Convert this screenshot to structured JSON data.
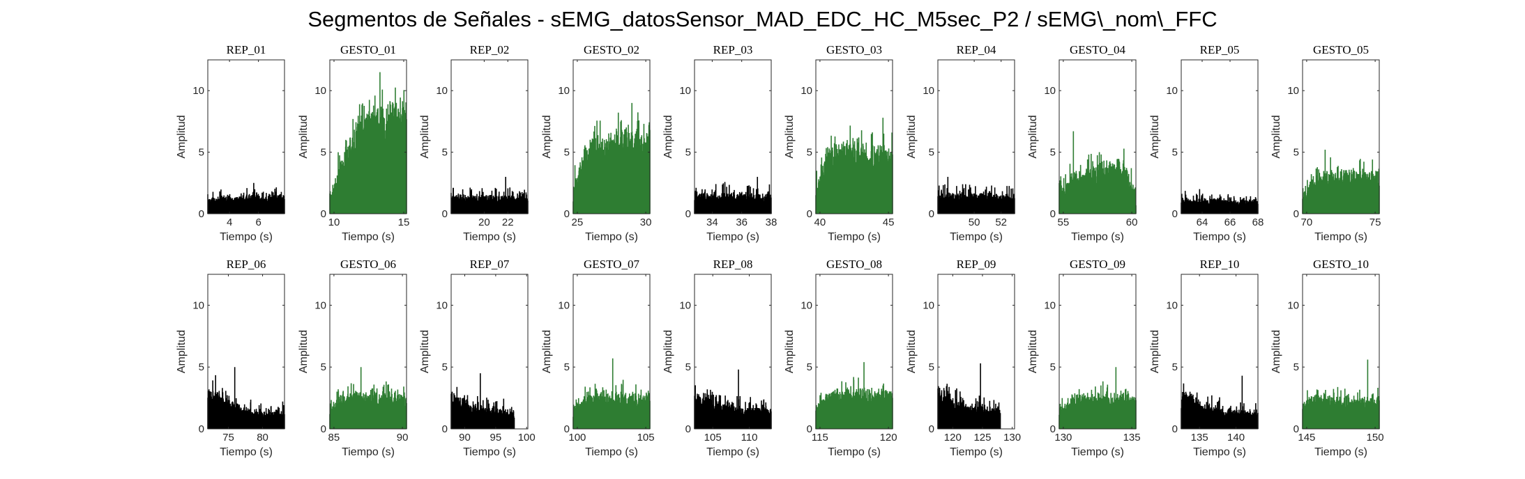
{
  "figure": {
    "title": "Segmentos de Señales - sEMG_datosSensor_MAD_EDC_HC_M5sec_P2 / sEMG\\_nom\\_FFC",
    "colors": {
      "rep": "#000000",
      "gesto": "#2e7d32"
    }
  },
  "chart_data": [
    {
      "type": "area",
      "title": "REP_01",
      "xlabel": "Tiempo (s)",
      "ylabel": "Amplitud",
      "xlim": [
        2.5,
        7.8
      ],
      "ylim": [
        0,
        12.5
      ],
      "xticks": [
        4,
        6
      ],
      "yticks": [
        0,
        5,
        10
      ],
      "x_range": [
        2.5,
        7.8
      ],
      "color": "#000000",
      "level_profile": [
        1.0,
        1.2,
        1.1,
        1.1,
        1.2,
        1.1,
        1.2,
        1.3
      ],
      "noise": 0.6,
      "spike_max": 2.5
    },
    {
      "type": "area",
      "title": "GESTO_01",
      "xlabel": "Tiempo (s)",
      "ylabel": "Amplitud",
      "xlim": [
        9.7,
        15.2
      ],
      "ylim": [
        0,
        12.5
      ],
      "xticks": [
        10,
        15
      ],
      "yticks": [
        0,
        5,
        10
      ],
      "x_range": [
        9.7,
        15.2
      ],
      "color": "#2e7d32",
      "level_profile": [
        1.0,
        2.5,
        5.0,
        6.5,
        7.3,
        7.8,
        8.0,
        8.1,
        8.2,
        8.3
      ],
      "noise": 1.6,
      "spike_max": 11.5
    },
    {
      "type": "area",
      "title": "REP_02",
      "xlabel": "Tiempo (s)",
      "ylabel": "Amplitud",
      "xlim": [
        17.2,
        23.7
      ],
      "ylim": [
        0,
        12.5
      ],
      "xticks": [
        20,
        22
      ],
      "yticks": [
        0,
        5,
        10
      ],
      "x_range": [
        17.2,
        23.7
      ],
      "color": "#000000",
      "level_profile": [
        1.3,
        1.2,
        1.2,
        1.2,
        1.1,
        1.2,
        1.1
      ],
      "noise": 0.7,
      "spike_max": 3.0
    },
    {
      "type": "area",
      "title": "GESTO_02",
      "xlabel": "Tiempo (s)",
      "ylabel": "Amplitud",
      "xlim": [
        24.7,
        30.3
      ],
      "ylim": [
        0,
        12.5
      ],
      "xticks": [
        25,
        30
      ],
      "yticks": [
        0,
        5,
        10
      ],
      "x_range": [
        24.7,
        30.3
      ],
      "color": "#2e7d32",
      "level_profile": [
        1.5,
        4.8,
        5.6,
        5.8,
        6.0,
        6.0,
        6.2,
        6.0
      ],
      "noise": 1.5,
      "spike_max": 9.0
    },
    {
      "type": "area",
      "title": "REP_03",
      "xlabel": "Tiempo (s)",
      "ylabel": "Amplitud",
      "xlim": [
        32.8,
        38.0
      ],
      "ylim": [
        0,
        12.5
      ],
      "xticks": [
        34,
        36,
        38
      ],
      "yticks": [
        0,
        5,
        10
      ],
      "x_range": [
        32.8,
        38.0
      ],
      "color": "#000000",
      "level_profile": [
        1.4,
        1.3,
        1.3,
        1.3,
        1.2,
        1.3
      ],
      "noise": 0.8,
      "spike_max": 3.0
    },
    {
      "type": "area",
      "title": "GESTO_03",
      "xlabel": "Tiempo (s)",
      "ylabel": "Amplitud",
      "xlim": [
        39.7,
        45.3
      ],
      "ylim": [
        0,
        12.5
      ],
      "xticks": [
        40,
        45
      ],
      "yticks": [
        0,
        5,
        10
      ],
      "x_range": [
        39.7,
        45.3
      ],
      "color": "#2e7d32",
      "level_profile": [
        1.5,
        4.5,
        5.0,
        5.0,
        5.0,
        4.9,
        4.8,
        4.7
      ],
      "noise": 1.4,
      "spike_max": 7.8
    },
    {
      "type": "area",
      "title": "REP_04",
      "xlabel": "Tiempo (s)",
      "ylabel": "Amplitud",
      "xlim": [
        47.3,
        53.0
      ],
      "ylim": [
        0,
        12.5
      ],
      "xticks": [
        50,
        52
      ],
      "yticks": [
        0,
        5,
        10
      ],
      "x_range": [
        47.3,
        53.0
      ],
      "color": "#000000",
      "level_profile": [
        1.3,
        1.3,
        1.3,
        1.2,
        1.3,
        1.2,
        1.2
      ],
      "noise": 0.8,
      "spike_max": 3.0
    },
    {
      "type": "area",
      "title": "GESTO_04",
      "xlabel": "Tiempo (s)",
      "ylabel": "Amplitud",
      "xlim": [
        54.7,
        60.3
      ],
      "ylim": [
        0,
        12.5
      ],
      "xticks": [
        55,
        60
      ],
      "yticks": [
        0,
        5,
        10
      ],
      "x_range": [
        54.7,
        60.3
      ],
      "color": "#2e7d32",
      "level_profile": [
        1.0,
        2.5,
        3.0,
        3.3,
        3.6,
        3.7,
        3.5,
        1.2
      ],
      "noise": 1.2,
      "spike_max": 6.7
    },
    {
      "type": "area",
      "title": "REP_05",
      "xlabel": "Tiempo (s)",
      "ylabel": "Amplitud",
      "xlim": [
        62.5,
        68.0
      ],
      "ylim": [
        0,
        12.5
      ],
      "xticks": [
        64,
        66,
        68
      ],
      "yticks": [
        0,
        5,
        10
      ],
      "x_range": [
        62.5,
        68.0
      ],
      "color": "#000000",
      "level_profile": [
        1.1,
        1.0,
        1.0,
        0.9,
        0.9,
        0.9
      ],
      "noise": 0.5,
      "spike_max": 2.0
    },
    {
      "type": "area",
      "title": "GESTO_05",
      "xlabel": "Tiempo (s)",
      "ylabel": "Amplitud",
      "xlim": [
        69.7,
        75.3
      ],
      "ylim": [
        0,
        12.5
      ],
      "xticks": [
        70,
        75
      ],
      "yticks": [
        0,
        5,
        10
      ],
      "x_range": [
        69.7,
        75.3
      ],
      "color": "#2e7d32",
      "level_profile": [
        1.0,
        2.5,
        3.0,
        3.0,
        3.0,
        3.0,
        3.0,
        2.8
      ],
      "noise": 1.0,
      "spike_max": 5.2
    },
    {
      "type": "area",
      "title": "REP_06",
      "xlabel": "Tiempo (s)",
      "ylabel": "Amplitud",
      "xlim": [
        72.0,
        83.2
      ],
      "ylim": [
        0,
        12.5
      ],
      "xticks": [
        75,
        80
      ],
      "yticks": [
        0,
        5,
        10
      ],
      "x_range": [
        72.0,
        83.2
      ],
      "color": "#000000",
      "level_profile": [
        3.0,
        2.8,
        2.2,
        1.8,
        1.5,
        1.3,
        1.2,
        1.2,
        1.1,
        1.1,
        1.1
      ],
      "noise": 0.9,
      "spike_max": 5.0
    },
    {
      "type": "area",
      "title": "GESTO_06",
      "xlabel": "Tiempo (s)",
      "ylabel": "Amplitud",
      "xlim": [
        84.7,
        90.3
      ],
      "ylim": [
        0,
        12.5
      ],
      "xticks": [
        85,
        90
      ],
      "yticks": [
        0,
        5,
        10
      ],
      "x_range": [
        84.7,
        90.3
      ],
      "color": "#2e7d32",
      "level_profile": [
        1.2,
        2.3,
        2.5,
        2.5,
        2.5,
        2.5,
        2.4,
        2.4
      ],
      "noise": 0.9,
      "spike_max": 5.0
    },
    {
      "type": "area",
      "title": "REP_07",
      "xlabel": "Tiempo (s)",
      "ylabel": "Amplitud",
      "xlim": [
        87.8,
        100.2
      ],
      "ylim": [
        0,
        12.5
      ],
      "xticks": [
        90,
        95,
        100
      ],
      "yticks": [
        0,
        5,
        10
      ],
      "x_range": [
        87.8,
        98.0
      ],
      "color": "#000000",
      "level_profile": [
        2.6,
        2.3,
        1.9,
        1.6,
        1.4,
        1.3,
        1.2,
        1.2,
        1.1,
        1.1
      ],
      "noise": 0.8,
      "spike_max": 4.5
    },
    {
      "type": "area",
      "title": "GESTO_07",
      "xlabel": "Tiempo (s)",
      "ylabel": "Amplitud",
      "xlim": [
        99.7,
        105.3
      ],
      "ylim": [
        0,
        12.5
      ],
      "xticks": [
        100,
        105
      ],
      "yticks": [
        0,
        5,
        10
      ],
      "x_range": [
        99.7,
        105.3
      ],
      "color": "#2e7d32",
      "level_profile": [
        1.2,
        2.3,
        2.5,
        2.5,
        2.5,
        2.4,
        2.4,
        2.5
      ],
      "noise": 0.9,
      "spike_max": 5.7
    },
    {
      "type": "area",
      "title": "REP_08",
      "xlabel": "Tiempo (s)",
      "ylabel": "Amplitud",
      "xlim": [
        102.5,
        113.0
      ],
      "ylim": [
        0,
        12.5
      ],
      "xticks": [
        105,
        110
      ],
      "yticks": [
        0,
        5,
        10
      ],
      "x_range": [
        102.5,
        113.0
      ],
      "color": "#000000",
      "level_profile": [
        2.2,
        2.5,
        2.0,
        1.7,
        1.5,
        1.4,
        1.3,
        1.3,
        1.3,
        1.3
      ],
      "noise": 0.9,
      "spike_max": 4.8
    },
    {
      "type": "area",
      "title": "GESTO_08",
      "xlabel": "Tiempo (s)",
      "ylabel": "Amplitud",
      "xlim": [
        114.7,
        120.3
      ],
      "ylim": [
        0,
        12.5
      ],
      "xticks": [
        115,
        120
      ],
      "yticks": [
        0,
        5,
        10
      ],
      "x_range": [
        114.7,
        120.3
      ],
      "color": "#2e7d32",
      "level_profile": [
        1.3,
        2.5,
        2.8,
        2.8,
        2.7,
        2.7,
        2.6,
        2.6
      ],
      "noise": 1.0,
      "spike_max": 5.4
    },
    {
      "type": "area",
      "title": "REP_09",
      "xlabel": "Tiempo (s)",
      "ylabel": "Amplitud",
      "xlim": [
        117.5,
        130.4
      ],
      "ylim": [
        0,
        12.5
      ],
      "xticks": [
        120,
        125,
        130
      ],
      "yticks": [
        0,
        5,
        10
      ],
      "x_range": [
        117.5,
        128.0
      ],
      "color": "#000000",
      "level_profile": [
        3.0,
        2.7,
        2.2,
        1.8,
        1.6,
        1.5,
        1.4,
        1.4,
        1.4,
        1.4
      ],
      "noise": 0.9,
      "spike_max": 5.3
    },
    {
      "type": "area",
      "title": "GESTO_09",
      "xlabel": "Tiempo (s)",
      "ylabel": "Amplitud",
      "xlim": [
        129.7,
        135.3
      ],
      "ylim": [
        0,
        12.5
      ],
      "xticks": [
        130,
        135
      ],
      "yticks": [
        0,
        5,
        10
      ],
      "x_range": [
        129.7,
        135.3
      ],
      "color": "#2e7d32",
      "level_profile": [
        1.2,
        2.2,
        2.4,
        2.4,
        2.4,
        2.4,
        2.3,
        2.3
      ],
      "noise": 0.9,
      "spike_max": 5.0
    },
    {
      "type": "area",
      "title": "REP_10",
      "xlabel": "Tiempo (s)",
      "ylabel": "Amplitud",
      "xlim": [
        132.5,
        143.0
      ],
      "ylim": [
        0,
        12.5
      ],
      "xticks": [
        135,
        140
      ],
      "yticks": [
        0,
        5,
        10
      ],
      "x_range": [
        132.5,
        143.0
      ],
      "color": "#000000",
      "level_profile": [
        2.5,
        2.6,
        1.9,
        1.5,
        1.3,
        1.2,
        1.2,
        1.1,
        1.1,
        1.1
      ],
      "noise": 0.8,
      "spike_max": 4.3
    },
    {
      "type": "area",
      "title": "GESTO_10",
      "xlabel": "Tiempo (s)",
      "ylabel": "Amplitud",
      "xlim": [
        144.7,
        150.3
      ],
      "ylim": [
        0,
        12.5
      ],
      "xticks": [
        145,
        150
      ],
      "yticks": [
        0,
        5,
        10
      ],
      "x_range": [
        144.7,
        150.3
      ],
      "color": "#2e7d32",
      "level_profile": [
        2.0,
        2.3,
        2.3,
        2.2,
        2.2,
        2.2,
        2.1,
        2.2
      ],
      "noise": 0.8,
      "spike_max": 5.6
    }
  ]
}
